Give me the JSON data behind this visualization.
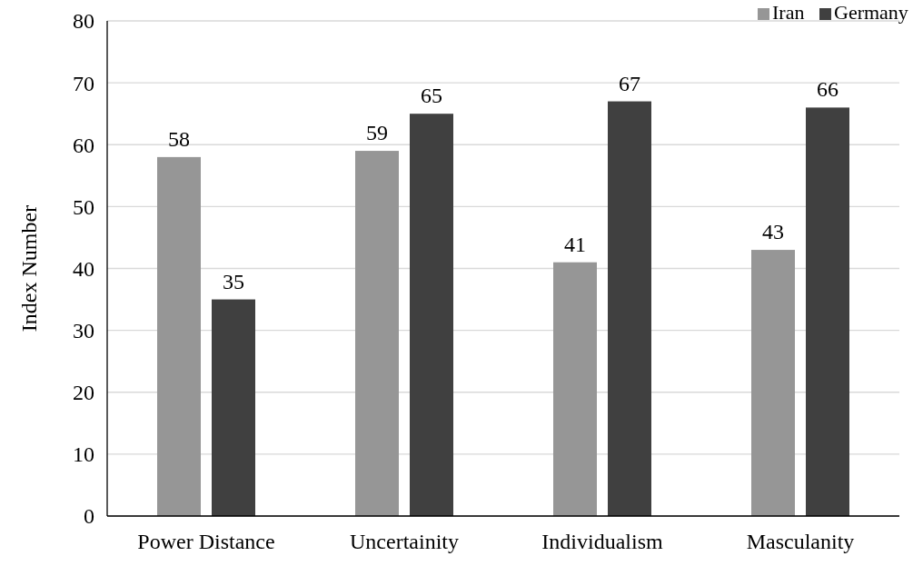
{
  "chart_data": {
    "type": "bar",
    "ylabel": "Index Number",
    "categories": [
      "Power Distance",
      "Uncertainity",
      "Individualism",
      "Masculanity"
    ],
    "series": [
      {
        "name": "Iran",
        "color": "#969696",
        "values": [
          58,
          59,
          41,
          43
        ]
      },
      {
        "name": "Germany",
        "color": "#404040",
        "values": [
          35,
          65,
          67,
          66
        ]
      }
    ],
    "ylim": [
      0,
      80
    ],
    "yticks": [
      0,
      10,
      20,
      30,
      40,
      50,
      60,
      70,
      80
    ],
    "grid": "y",
    "legend": "top right",
    "data_labels": true
  }
}
